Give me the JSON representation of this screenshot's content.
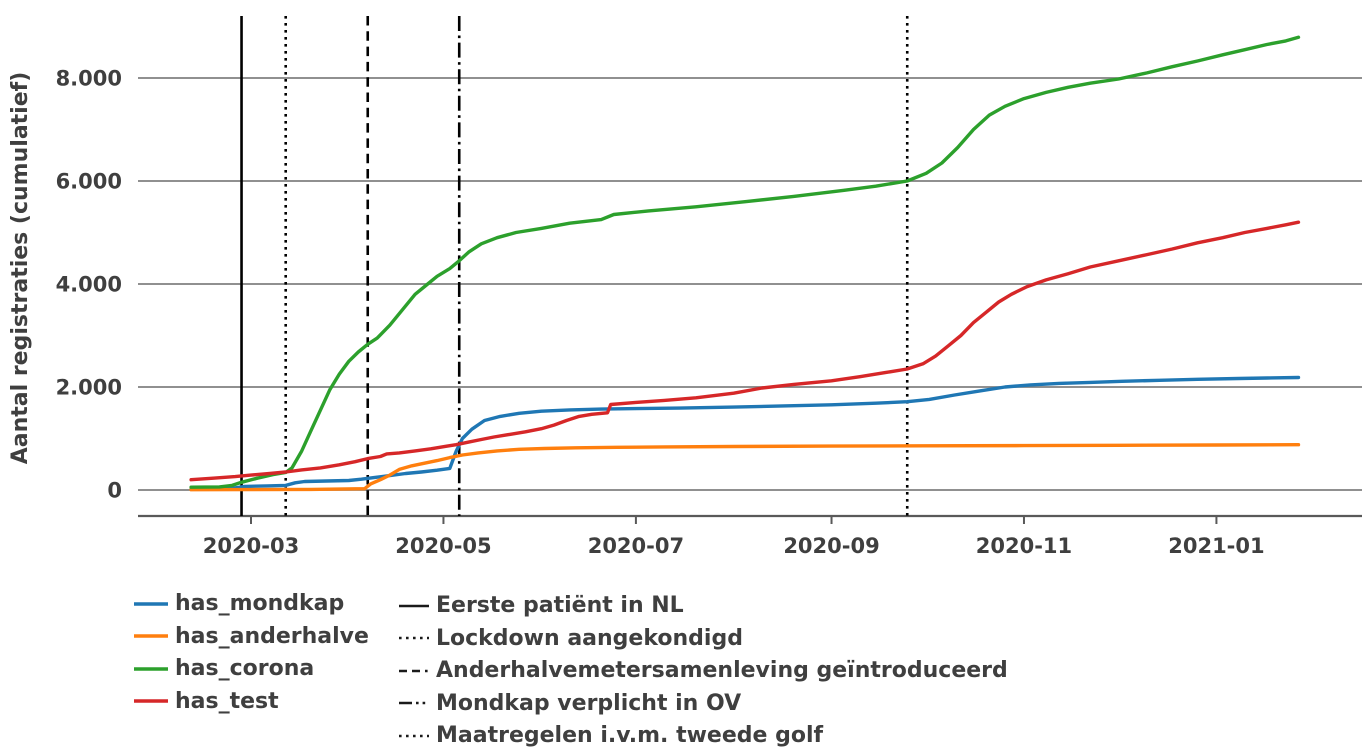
{
  "colors": {
    "background": "#ffffff",
    "text": "#3f3f3f",
    "grid": "#808080",
    "axis": "#595959",
    "event_line": "#000000"
  },
  "chart_data": {
    "type": "line",
    "title": "",
    "xlabel": "",
    "ylabel": "Aantal registraties (cumulatief)",
    "ylim": [
      0,
      9200
    ],
    "grid": "horizontal",
    "legend_position": "below plot, two columns",
    "y_ticks": [
      {
        "value": 0,
        "label": "0"
      },
      {
        "value": 2000,
        "label": "2.000"
      },
      {
        "value": 4000,
        "label": "4.000"
      },
      {
        "value": 6000,
        "label": "6.000"
      },
      {
        "value": 8000,
        "label": "8.000"
      }
    ],
    "x_ticks": [
      {
        "date": "2020-03-01",
        "label": "2020-03"
      },
      {
        "date": "2020-05-01",
        "label": "2020-05"
      },
      {
        "date": "2020-07-01",
        "label": "2020-07"
      },
      {
        "date": "2020-09-01",
        "label": "2020-09"
      },
      {
        "date": "2020-11-01",
        "label": "2020-11"
      },
      {
        "date": "2021-01-01",
        "label": "2021-01"
      }
    ],
    "event_lines": [
      {
        "label": "Eerste patiënt in NL",
        "date": "2020-02-27",
        "style": "solid"
      },
      {
        "label": "Lockdown aangekondigd",
        "date": "2020-03-12",
        "style": "dotted"
      },
      {
        "label": "Anderhalvemetersamenleving geïntroduceerd",
        "date": "2020-04-07",
        "style": "dashed"
      },
      {
        "label": "Mondkap verplicht in OV",
        "date": "2020-05-06",
        "style": "dashdot"
      },
      {
        "label": "Maatregelen i.v.m. tweede golf",
        "date": "2020-09-25",
        "style": "dotted"
      }
    ],
    "series": [
      {
        "name": "has_mondkap",
        "color": "#1f77b4",
        "points": [
          [
            "2020-02-11",
            15
          ],
          [
            "2020-02-22",
            20
          ],
          [
            "2020-02-26",
            50
          ],
          [
            "2020-02-28",
            70
          ],
          [
            "2020-03-06",
            80
          ],
          [
            "2020-03-12",
            90
          ],
          [
            "2020-03-15",
            140
          ],
          [
            "2020-03-18",
            165
          ],
          [
            "2020-03-25",
            175
          ],
          [
            "2020-04-01",
            185
          ],
          [
            "2020-04-05",
            210
          ],
          [
            "2020-04-09",
            240
          ],
          [
            "2020-04-14",
            280
          ],
          [
            "2020-04-19",
            320
          ],
          [
            "2020-04-24",
            350
          ],
          [
            "2020-04-29",
            385
          ],
          [
            "2020-05-03",
            420
          ],
          [
            "2020-05-05",
            750
          ],
          [
            "2020-05-07",
            1000
          ],
          [
            "2020-05-10",
            1180
          ],
          [
            "2020-05-14",
            1350
          ],
          [
            "2020-05-19",
            1430
          ],
          [
            "2020-05-25",
            1490
          ],
          [
            "2020-06-01",
            1530
          ],
          [
            "2020-06-10",
            1555
          ],
          [
            "2020-06-20",
            1570
          ],
          [
            "2020-07-01",
            1580
          ],
          [
            "2020-07-15",
            1590
          ],
          [
            "2020-08-01",
            1610
          ],
          [
            "2020-08-15",
            1630
          ],
          [
            "2020-09-01",
            1655
          ],
          [
            "2020-09-15",
            1685
          ],
          [
            "2020-09-25",
            1715
          ],
          [
            "2020-10-02",
            1760
          ],
          [
            "2020-10-10",
            1845
          ],
          [
            "2020-10-18",
            1925
          ],
          [
            "2020-10-26",
            2000
          ],
          [
            "2020-11-03",
            2040
          ],
          [
            "2020-11-12",
            2070
          ],
          [
            "2020-11-22",
            2090
          ],
          [
            "2020-12-02",
            2110
          ],
          [
            "2020-12-14",
            2130
          ],
          [
            "2020-12-26",
            2150
          ],
          [
            "2021-01-08",
            2165
          ],
          [
            "2021-01-17",
            2175
          ],
          [
            "2021-01-27",
            2185
          ]
        ]
      },
      {
        "name": "has_anderhalve",
        "color": "#ff7f0e",
        "points": [
          [
            "2020-02-11",
            5
          ],
          [
            "2020-03-01",
            8
          ],
          [
            "2020-03-20",
            12
          ],
          [
            "2020-04-06",
            25
          ],
          [
            "2020-04-08",
            120
          ],
          [
            "2020-04-11",
            200
          ],
          [
            "2020-04-14",
            290
          ],
          [
            "2020-04-17",
            400
          ],
          [
            "2020-04-21",
            470
          ],
          [
            "2020-04-25",
            520
          ],
          [
            "2020-04-29",
            570
          ],
          [
            "2020-05-03",
            630
          ],
          [
            "2020-05-07",
            680
          ],
          [
            "2020-05-12",
            720
          ],
          [
            "2020-05-18",
            760
          ],
          [
            "2020-05-25",
            790
          ],
          [
            "2020-06-02",
            805
          ],
          [
            "2020-06-12",
            820
          ],
          [
            "2020-06-25",
            830
          ],
          [
            "2020-07-10",
            836
          ],
          [
            "2020-08-01",
            845
          ],
          [
            "2020-09-01",
            852
          ],
          [
            "2020-10-01",
            858
          ],
          [
            "2020-11-01",
            862
          ],
          [
            "2020-12-01",
            868
          ],
          [
            "2021-01-01",
            873
          ],
          [
            "2021-01-27",
            880
          ]
        ]
      },
      {
        "name": "has_corona",
        "color": "#2ca02c",
        "points": [
          [
            "2020-02-11",
            55
          ],
          [
            "2020-02-20",
            60
          ],
          [
            "2020-02-24",
            90
          ],
          [
            "2020-02-27",
            150
          ],
          [
            "2020-03-03",
            230
          ],
          [
            "2020-03-08",
            300
          ],
          [
            "2020-03-12",
            340
          ],
          [
            "2020-03-14",
            430
          ],
          [
            "2020-03-17",
            750
          ],
          [
            "2020-03-20",
            1150
          ],
          [
            "2020-03-23",
            1550
          ],
          [
            "2020-03-26",
            1950
          ],
          [
            "2020-03-29",
            2250
          ],
          [
            "2020-04-01",
            2500
          ],
          [
            "2020-04-04",
            2680
          ],
          [
            "2020-04-07",
            2830
          ],
          [
            "2020-04-10",
            2950
          ],
          [
            "2020-04-14",
            3200
          ],
          [
            "2020-04-18",
            3500
          ],
          [
            "2020-04-22",
            3800
          ],
          [
            "2020-04-26",
            4000
          ],
          [
            "2020-04-29",
            4150
          ],
          [
            "2020-05-03",
            4300
          ],
          [
            "2020-05-06",
            4450
          ],
          [
            "2020-05-09",
            4620
          ],
          [
            "2020-05-13",
            4780
          ],
          [
            "2020-05-18",
            4900
          ],
          [
            "2020-05-24",
            5000
          ],
          [
            "2020-06-01",
            5080
          ],
          [
            "2020-06-10",
            5180
          ],
          [
            "2020-06-20",
            5250
          ],
          [
            "2020-06-24",
            5350
          ],
          [
            "2020-07-05",
            5420
          ],
          [
            "2020-07-20",
            5500
          ],
          [
            "2020-08-05",
            5600
          ],
          [
            "2020-08-20",
            5700
          ],
          [
            "2020-09-05",
            5820
          ],
          [
            "2020-09-15",
            5900
          ],
          [
            "2020-09-25",
            6000
          ],
          [
            "2020-10-01",
            6150
          ],
          [
            "2020-10-06",
            6350
          ],
          [
            "2020-10-11",
            6650
          ],
          [
            "2020-10-16",
            7000
          ],
          [
            "2020-10-21",
            7280
          ],
          [
            "2020-10-26",
            7450
          ],
          [
            "2020-11-01",
            7600
          ],
          [
            "2020-11-08",
            7720
          ],
          [
            "2020-11-15",
            7820
          ],
          [
            "2020-11-22",
            7900
          ],
          [
            "2020-12-01",
            7980
          ],
          [
            "2020-12-10",
            8100
          ],
          [
            "2020-12-18",
            8220
          ],
          [
            "2020-12-26",
            8330
          ],
          [
            "2021-01-03",
            8450
          ],
          [
            "2021-01-10",
            8550
          ],
          [
            "2021-01-17",
            8650
          ],
          [
            "2021-01-23",
            8720
          ],
          [
            "2021-01-27",
            8790
          ]
        ]
      },
      {
        "name": "has_test",
        "color": "#d62728",
        "points": [
          [
            "2020-02-11",
            200
          ],
          [
            "2020-02-18",
            230
          ],
          [
            "2020-02-25",
            260
          ],
          [
            "2020-03-01",
            290
          ],
          [
            "2020-03-07",
            320
          ],
          [
            "2020-03-12",
            350
          ],
          [
            "2020-03-17",
            390
          ],
          [
            "2020-03-23",
            430
          ],
          [
            "2020-03-29",
            490
          ],
          [
            "2020-04-03",
            550
          ],
          [
            "2020-04-07",
            610
          ],
          [
            "2020-04-11",
            650
          ],
          [
            "2020-04-13",
            700
          ],
          [
            "2020-04-17",
            720
          ],
          [
            "2020-04-22",
            760
          ],
          [
            "2020-04-27",
            800
          ],
          [
            "2020-05-02",
            850
          ],
          [
            "2020-05-05",
            880
          ],
          [
            "2020-05-09",
            930
          ],
          [
            "2020-05-13",
            980
          ],
          [
            "2020-05-17",
            1030
          ],
          [
            "2020-05-22",
            1080
          ],
          [
            "2020-05-27",
            1130
          ],
          [
            "2020-06-01",
            1190
          ],
          [
            "2020-06-05",
            1260
          ],
          [
            "2020-06-09",
            1350
          ],
          [
            "2020-06-13",
            1430
          ],
          [
            "2020-06-17",
            1470
          ],
          [
            "2020-06-22",
            1500
          ],
          [
            "2020-06-23",
            1660
          ],
          [
            "2020-07-01",
            1700
          ],
          [
            "2020-07-10",
            1740
          ],
          [
            "2020-07-20",
            1790
          ],
          [
            "2020-08-01",
            1880
          ],
          [
            "2020-08-10",
            1980
          ],
          [
            "2020-08-20",
            2050
          ],
          [
            "2020-09-01",
            2120
          ],
          [
            "2020-09-10",
            2200
          ],
          [
            "2020-09-18",
            2280
          ],
          [
            "2020-09-25",
            2350
          ],
          [
            "2020-09-30",
            2450
          ],
          [
            "2020-10-04",
            2600
          ],
          [
            "2020-10-08",
            2800
          ],
          [
            "2020-10-12",
            3000
          ],
          [
            "2020-10-16",
            3250
          ],
          [
            "2020-10-20",
            3450
          ],
          [
            "2020-10-24",
            3650
          ],
          [
            "2020-10-28",
            3800
          ],
          [
            "2020-11-02",
            3950
          ],
          [
            "2020-11-08",
            4080
          ],
          [
            "2020-11-15",
            4200
          ],
          [
            "2020-11-22",
            4330
          ],
          [
            "2020-12-01",
            4450
          ],
          [
            "2020-12-10",
            4570
          ],
          [
            "2020-12-18",
            4680
          ],
          [
            "2020-12-26",
            4800
          ],
          [
            "2021-01-03",
            4900
          ],
          [
            "2021-01-10",
            5000
          ],
          [
            "2021-01-17",
            5080
          ],
          [
            "2021-01-23",
            5150
          ],
          [
            "2021-01-27",
            5200
          ]
        ]
      }
    ]
  }
}
